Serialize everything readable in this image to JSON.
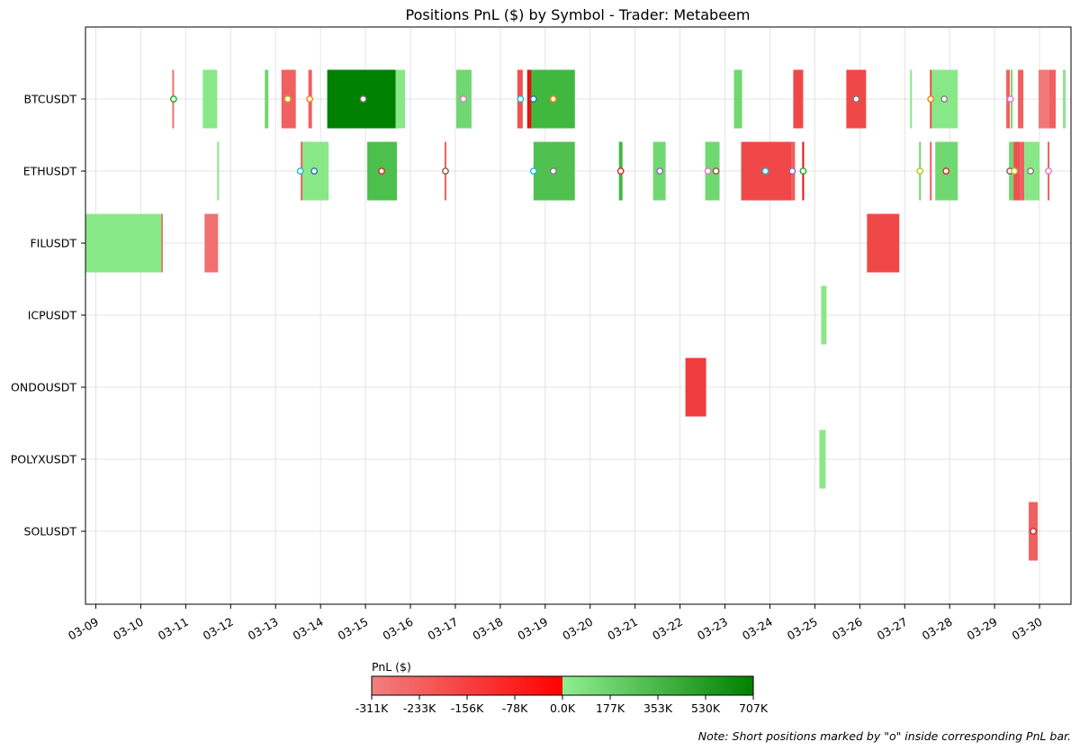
{
  "chart_data": {
    "type": "timeline",
    "title": "Positions PnL ($) by Symbol - Trader: Metabeem",
    "xlabel": "",
    "ylabel": "",
    "categories": [
      "BTCUSDT",
      "ETHUSDT",
      "FILUSDT",
      "ICPUSDT",
      "ONDOUSDT",
      "POLYXUSDT",
      "SOLUSDT"
    ],
    "x_ticks": [
      "03-09",
      "03-10",
      "03-11",
      "03-12",
      "03-13",
      "03-14",
      "03-15",
      "03-16",
      "03-17",
      "03-18",
      "03-19",
      "03-20",
      "03-21",
      "03-22",
      "03-23",
      "03-24",
      "03-25",
      "03-26",
      "03-27",
      "03-28",
      "03-29",
      "03-30"
    ],
    "x_range_days": [
      8.77,
      30.7
    ],
    "grid": true,
    "colorbar": {
      "label": "PnL ($)",
      "ticks": [
        "-311K",
        "-233K",
        "-156K",
        "-78K",
        "0.0K",
        "177K",
        "353K",
        "530K",
        "707K"
      ],
      "min": -311,
      "max": 707,
      "negative_colors": [
        "#f08080",
        "#ff0000"
      ],
      "positive_colors": [
        "#90ee90",
        "#008000"
      ]
    },
    "positions": [
      {
        "symbol": "BTCUSDT",
        "start": 10.7,
        "end": 10.74,
        "color": "#f07070"
      },
      {
        "symbol": "BTCUSDT",
        "start": 11.38,
        "end": 11.7,
        "color": "#88e888"
      },
      {
        "symbol": "BTCUSDT",
        "start": 12.76,
        "end": 12.84,
        "color": "#70d870"
      },
      {
        "symbol": "BTCUSDT",
        "start": 13.13,
        "end": 13.45,
        "color": "#f06060"
      },
      {
        "symbol": "BTCUSDT",
        "start": 13.73,
        "end": 13.81,
        "color": "#f06060"
      },
      {
        "symbol": "BTCUSDT",
        "start": 14.15,
        "end": 15.88,
        "color": "#88e888"
      },
      {
        "symbol": "BTCUSDT",
        "start": 14.15,
        "end": 15.67,
        "color": "#008000"
      },
      {
        "symbol": "BTCUSDT",
        "start": 17.02,
        "end": 17.36,
        "color": "#70d870"
      },
      {
        "symbol": "BTCUSDT",
        "start": 18.38,
        "end": 18.5,
        "color": "#f05050"
      },
      {
        "symbol": "BTCUSDT",
        "start": 18.6,
        "end": 19.66,
        "color": "#40b840"
      },
      {
        "symbol": "BTCUSDT",
        "start": 18.6,
        "end": 18.69,
        "color": "#e81010"
      },
      {
        "symbol": "BTCUSDT",
        "start": 23.2,
        "end": 23.38,
        "color": "#70d870"
      },
      {
        "symbol": "BTCUSDT",
        "start": 24.52,
        "end": 24.74,
        "color": "#f04848"
      },
      {
        "symbol": "BTCUSDT",
        "start": 25.7,
        "end": 26.14,
        "color": "#f04848"
      },
      {
        "symbol": "BTCUSDT",
        "start": 27.12,
        "end": 27.16,
        "color": "#88e888"
      },
      {
        "symbol": "BTCUSDT",
        "start": 27.56,
        "end": 28.18,
        "color": "#88e888"
      },
      {
        "symbol": "BTCUSDT",
        "start": 27.56,
        "end": 27.6,
        "color": "#f05050"
      },
      {
        "symbol": "BTCUSDT",
        "start": 29.26,
        "end": 29.34,
        "color": "#f06060"
      },
      {
        "symbol": "BTCUSDT",
        "start": 29.36,
        "end": 29.4,
        "color": "#70d870"
      },
      {
        "symbol": "BTCUSDT",
        "start": 29.52,
        "end": 29.64,
        "color": "#f06060"
      },
      {
        "symbol": "BTCUSDT",
        "start": 29.98,
        "end": 30.22,
        "color": "#f07878"
      },
      {
        "symbol": "BTCUSDT",
        "start": 30.22,
        "end": 30.36,
        "color": "#f06060"
      },
      {
        "symbol": "BTCUSDT",
        "start": 30.52,
        "end": 30.58,
        "color": "#88e888"
      },
      {
        "symbol": "ETHUSDT",
        "start": 11.7,
        "end": 11.74,
        "color": "#88e888"
      },
      {
        "symbol": "ETHUSDT",
        "start": 13.56,
        "end": 14.18,
        "color": "#88e888"
      },
      {
        "symbol": "ETHUSDT",
        "start": 13.56,
        "end": 13.6,
        "color": "#f06060"
      },
      {
        "symbol": "ETHUSDT",
        "start": 15.04,
        "end": 15.7,
        "color": "#4cc04c"
      },
      {
        "symbol": "ETHUSDT",
        "start": 16.76,
        "end": 16.8,
        "color": "#f06060"
      },
      {
        "symbol": "ETHUSDT",
        "start": 18.74,
        "end": 19.66,
        "color": "#50c050"
      },
      {
        "symbol": "ETHUSDT",
        "start": 20.64,
        "end": 20.72,
        "color": "#40b840"
      },
      {
        "symbol": "ETHUSDT",
        "start": 21.4,
        "end": 21.68,
        "color": "#70d870"
      },
      {
        "symbol": "ETHUSDT",
        "start": 22.56,
        "end": 22.88,
        "color": "#70d870"
      },
      {
        "symbol": "ETHUSDT",
        "start": 23.36,
        "end": 24.48,
        "color": "#f04848"
      },
      {
        "symbol": "ETHUSDT",
        "start": 24.48,
        "end": 24.56,
        "color": "#f06060"
      },
      {
        "symbol": "ETHUSDT",
        "start": 24.72,
        "end": 24.76,
        "color": "#e81010"
      },
      {
        "symbol": "ETHUSDT",
        "start": 27.32,
        "end": 27.36,
        "color": "#70d870"
      },
      {
        "symbol": "ETHUSDT",
        "start": 27.56,
        "end": 27.6,
        "color": "#f06060"
      },
      {
        "symbol": "ETHUSDT",
        "start": 27.68,
        "end": 28.18,
        "color": "#70d870"
      },
      {
        "symbol": "ETHUSDT",
        "start": 29.32,
        "end": 29.42,
        "color": "#70d870"
      },
      {
        "symbol": "ETHUSDT",
        "start": 29.42,
        "end": 29.56,
        "color": "#f05050"
      },
      {
        "symbol": "ETHUSDT",
        "start": 29.56,
        "end": 29.66,
        "color": "#f06060"
      },
      {
        "symbol": "ETHUSDT",
        "start": 29.66,
        "end": 30.0,
        "color": "#88e888"
      },
      {
        "symbol": "ETHUSDT",
        "start": 30.18,
        "end": 30.22,
        "color": "#f06060"
      },
      {
        "symbol": "FILUSDT",
        "start": 8.77,
        "end": 10.48,
        "color": "#88e888"
      },
      {
        "symbol": "FILUSDT",
        "start": 10.46,
        "end": 10.48,
        "color": "#f06060"
      },
      {
        "symbol": "FILUSDT",
        "start": 11.42,
        "end": 11.72,
        "color": "#f07070"
      },
      {
        "symbol": "FILUSDT",
        "start": 26.16,
        "end": 26.88,
        "color": "#f04848"
      },
      {
        "symbol": "ICPUSDT",
        "start": 25.14,
        "end": 25.26,
        "color": "#88e888"
      },
      {
        "symbol": "ONDOUSDT",
        "start": 22.12,
        "end": 22.58,
        "color": "#f03c3c"
      },
      {
        "symbol": "POLYXUSDT",
        "start": 25.1,
        "end": 25.24,
        "color": "#88e888"
      },
      {
        "symbol": "SOLUSDT",
        "start": 29.76,
        "end": 29.96,
        "color": "#f06060"
      }
    ],
    "short_markers": [
      {
        "symbol": "BTCUSDT",
        "x": 10.73,
        "stroke": "#2ca02c"
      },
      {
        "symbol": "BTCUSDT",
        "x": 13.27,
        "stroke": "#bcbd22"
      },
      {
        "symbol": "BTCUSDT",
        "x": 13.76,
        "stroke": "#ff7f0e"
      },
      {
        "symbol": "BTCUSDT",
        "x": 14.95,
        "stroke": "#7f7f7f"
      },
      {
        "symbol": "BTCUSDT",
        "x": 17.18,
        "stroke": "#e377c2"
      },
      {
        "symbol": "BTCUSDT",
        "x": 18.45,
        "stroke": "#17becf"
      },
      {
        "symbol": "BTCUSDT",
        "x": 18.74,
        "stroke": "#1f77b4"
      },
      {
        "symbol": "BTCUSDT",
        "x": 19.18,
        "stroke": "#ff7f0e"
      },
      {
        "symbol": "BTCUSDT",
        "x": 25.92,
        "stroke": "#7f7f7f"
      },
      {
        "symbol": "BTCUSDT",
        "x": 27.58,
        "stroke": "#ff7f0e"
      },
      {
        "symbol": "BTCUSDT",
        "x": 27.88,
        "stroke": "#7f7f7f"
      },
      {
        "symbol": "BTCUSDT",
        "x": 29.35,
        "stroke": "#e377c2"
      },
      {
        "symbol": "ETHUSDT",
        "x": 13.55,
        "stroke": "#17becf"
      },
      {
        "symbol": "ETHUSDT",
        "x": 13.86,
        "stroke": "#1f77b4"
      },
      {
        "symbol": "ETHUSDT",
        "x": 15.36,
        "stroke": "#d62728"
      },
      {
        "symbol": "ETHUSDT",
        "x": 16.78,
        "stroke": "#8c564b"
      },
      {
        "symbol": "ETHUSDT",
        "x": 18.74,
        "stroke": "#17becf"
      },
      {
        "symbol": "ETHUSDT",
        "x": 19.18,
        "stroke": "#7f7f7f"
      },
      {
        "symbol": "ETHUSDT",
        "x": 20.68,
        "stroke": "#d62728"
      },
      {
        "symbol": "ETHUSDT",
        "x": 21.55,
        "stroke": "#9467bd"
      },
      {
        "symbol": "ETHUSDT",
        "x": 22.62,
        "stroke": "#e377c2"
      },
      {
        "symbol": "ETHUSDT",
        "x": 22.8,
        "stroke": "#8c564b"
      },
      {
        "symbol": "ETHUSDT",
        "x": 23.9,
        "stroke": "#17becf"
      },
      {
        "symbol": "ETHUSDT",
        "x": 24.5,
        "stroke": "#9467bd"
      },
      {
        "symbol": "ETHUSDT",
        "x": 24.74,
        "stroke": "#2ca02c"
      },
      {
        "symbol": "ETHUSDT",
        "x": 27.34,
        "stroke": "#bcbd22"
      },
      {
        "symbol": "ETHUSDT",
        "x": 27.92,
        "stroke": "#d62728"
      },
      {
        "symbol": "ETHUSDT",
        "x": 29.34,
        "stroke": "#8c564b"
      },
      {
        "symbol": "ETHUSDT",
        "x": 29.44,
        "stroke": "#bcbd22"
      },
      {
        "symbol": "ETHUSDT",
        "x": 29.8,
        "stroke": "#7f7f7f"
      },
      {
        "symbol": "ETHUSDT",
        "x": 30.2,
        "stroke": "#e377c2"
      },
      {
        "symbol": "SOLUSDT",
        "x": 29.86,
        "stroke": "#d62728"
      }
    ]
  },
  "note": "Note: Short positions marked by \"o\" inside corresponding PnL bar."
}
